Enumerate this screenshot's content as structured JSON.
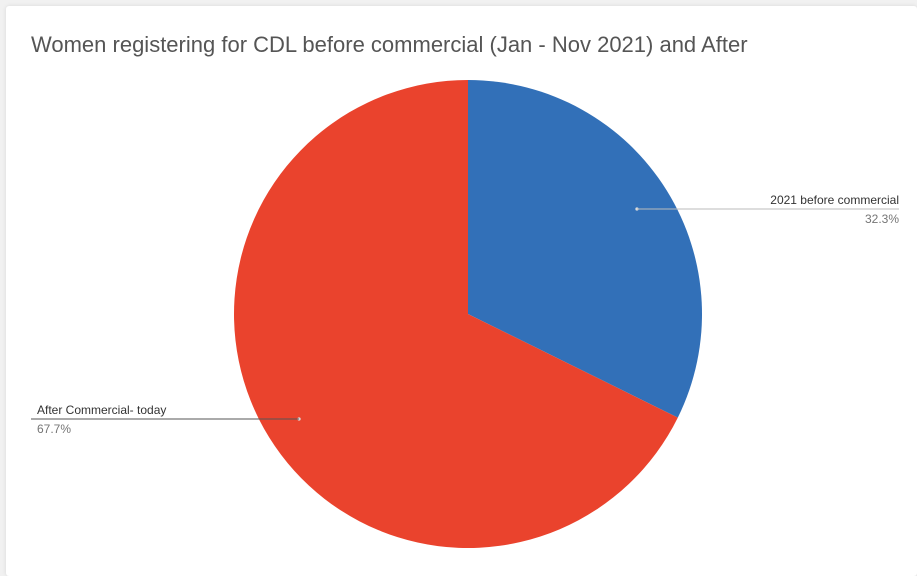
{
  "chart_data": {
    "type": "pie",
    "title": "Women registering for CDL before commercial (Jan - Nov 2021) and After",
    "slices": [
      {
        "label": "2021 before commercial",
        "value": 32.3,
        "value_label": "32.3%",
        "color": "#3270b8"
      },
      {
        "label": "After Commercial- today",
        "value": 67.7,
        "value_label": "67.7%",
        "color": "#ea432d"
      }
    ],
    "start_angle": "12 o'clock",
    "direction": "clockwise",
    "legend": "none",
    "labels": "outside with leader lines"
  }
}
